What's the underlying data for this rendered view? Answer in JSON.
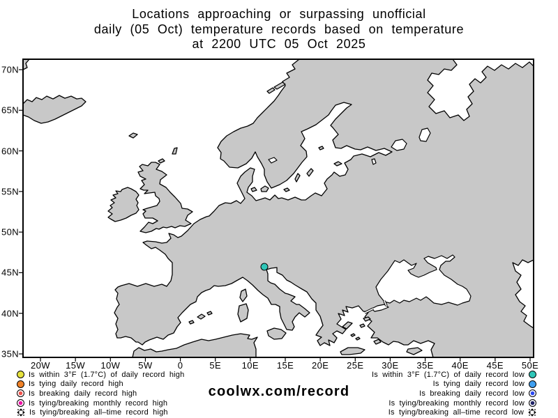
{
  "title": {
    "line1": "Locations approaching or surpassing unofficial",
    "line2": "daily (05 Oct) temperature records based on temperature",
    "line3": "at 2200 UTC 05 Oct 2025"
  },
  "watermark": "coolwx.com/record",
  "axes": {
    "x_tick_labels": [
      "20W",
      "15W",
      "10W",
      "5W",
      "0",
      "5E",
      "10E",
      "15E",
      "20E",
      "25E",
      "30E",
      "35E",
      "40E",
      "45E",
      "50E"
    ],
    "y_tick_labels": [
      "70N",
      "65N",
      "60N",
      "55N",
      "50N",
      "45N",
      "40N",
      "35N"
    ]
  },
  "legend": {
    "left_items": [
      {
        "label": "Is within 3°F (1.7°C) of daily record high",
        "marker": "circle",
        "color": "#e6e23e"
      },
      {
        "label": "Is tying daily record high",
        "marker": "circle",
        "color": "#f08228"
      },
      {
        "label": "Is breaking daily record high",
        "marker": "ring",
        "color": "#f2524b"
      },
      {
        "label": "Is tying/breaking monthly record high",
        "marker": "ring",
        "color": "#ee12a5"
      },
      {
        "label": "Is tying/breaking all–time record high",
        "marker": "alltime",
        "color": "#000000"
      }
    ],
    "right_items": [
      {
        "label": "Is within 3°F (1.7°C) of daily record low",
        "marker": "circle",
        "color": "#2fc6b8"
      },
      {
        "label": "Is tying daily record low",
        "marker": "circle",
        "color": "#3f9ff0"
      },
      {
        "label": "Is breaking daily record low",
        "marker": "ring",
        "color": "#2b49f2"
      },
      {
        "label": "Is tying/breaking monthly record low",
        "marker": "ring",
        "color": "#1f2366"
      },
      {
        "label": "Is tying/breaking all–time record low",
        "marker": "alltime",
        "color": "#000000"
      }
    ]
  },
  "map": {
    "land_color": "#c8c8c8",
    "sea_color": "#ffffff",
    "coast_color": "#000000",
    "points": [
      {
        "lon": 12.0,
        "lat": 45.7,
        "color": "#2fc6b8",
        "legend_match": "Is within 3°F (1.7°C) of daily record low"
      }
    ]
  }
}
